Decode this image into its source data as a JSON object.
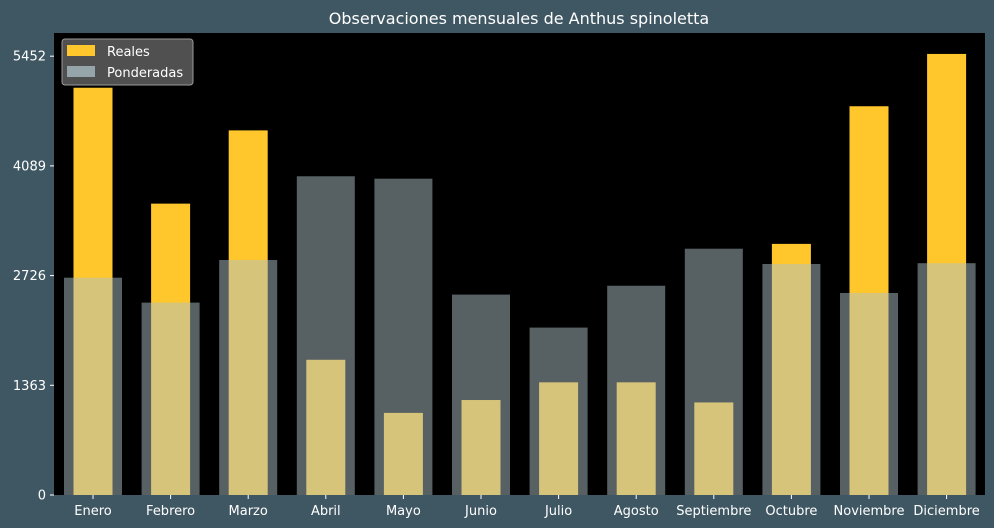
{
  "chart_data": {
    "type": "bar",
    "title": "Observaciones mensuales de Anthus spinoletta",
    "xlabel": "",
    "ylabel": "",
    "categories": [
      "Enero",
      "Febrero",
      "Marzo",
      "Abril",
      "Mayo",
      "Junio",
      "Julio",
      "Agosto",
      "Septiembre",
      "Octubre",
      "Noviembre",
      "Diciembre"
    ],
    "series": [
      {
        "name": "Reales",
        "color": "#ffc72c",
        "values": [
          5060,
          3620,
          4530,
          1680,
          1020,
          1180,
          1400,
          1400,
          1150,
          3120,
          4830,
          5480
        ]
      },
      {
        "name": "Ponderadas",
        "color": "#aec2c8",
        "opacity": 0.5,
        "values": [
          2700,
          2390,
          2920,
          3960,
          3930,
          2490,
          2080,
          2600,
          3060,
          2870,
          2510,
          2880
        ]
      }
    ],
    "yticks": [
      0,
      1363,
      2726,
      4089,
      5452
    ],
    "ylim": [
      0,
      5740
    ],
    "grid": false,
    "legend_position": "top-left",
    "plot_background": "#000000",
    "figure_background": "#3f5763"
  }
}
